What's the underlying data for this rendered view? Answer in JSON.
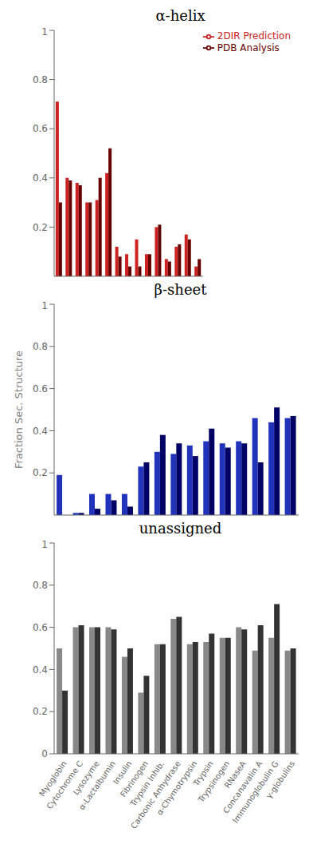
{
  "chart_data": [
    {
      "type": "bar",
      "title": "α-helix",
      "categories": [
        "Myoglobin",
        "Cytochrome C",
        "Lysozyme",
        "α-Lactalbumin",
        "Insulin",
        "Fibrinogen",
        "Trypsin Inhib.",
        "Carbonic Anhydrase",
        "α-Chymotrypsin",
        "Trypsin",
        "Trypsinogen",
        "RNaseA",
        "Concanavalin A",
        "Immunoglobulin G",
        "γ-globulins"
      ],
      "series": [
        {
          "name": "2DIR Prediction",
          "color": "#cc2222",
          "values": [
            0.71,
            0.4,
            0.38,
            0.3,
            0.31,
            0.42,
            0.12,
            0.09,
            0.15,
            0.09,
            0.2,
            0.07,
            0.12,
            0.17,
            0.04
          ]
        },
        {
          "name": "PDB Analysis",
          "color": "#660000",
          "values": [
            0.3,
            0.39,
            0.37,
            0.3,
            0.4,
            0.52,
            0.08,
            0.04,
            0.04,
            0.09,
            0.21,
            0.06,
            0.13,
            0.15,
            0.07
          ]
        }
      ],
      "ylim": [
        0,
        1
      ],
      "yticks": [
        0,
        0.2,
        0.4,
        0.6,
        0.8,
        1
      ],
      "legend": "upper right",
      "tick_labels": "y"
    },
    {
      "type": "bar",
      "title": "β-sheet",
      "ylabel": "Fraction Sec. Structure",
      "categories": [
        "Myoglobin",
        "Cytochrome C",
        "Lysozyme",
        "α-Lactalbumin",
        "Insulin",
        "Fibrinogen",
        "Trypsin Inhib.",
        "Carbonic Anhydrase",
        "α-Chymotrypsin",
        "Trypsin",
        "Trypsinogen",
        "RNaseA",
        "Concanavalin A",
        "Immunoglobulin G",
        "γ-globulins"
      ],
      "series": [
        {
          "color": "#2233bb",
          "values": [
            0.19,
            0.01,
            0.1,
            0.1,
            0.1,
            0.23,
            0.3,
            0.29,
            0.33,
            0.35,
            0.34,
            0.35,
            0.46,
            0.44,
            0.46
          ]
        },
        {
          "color": "#000066",
          "values": [
            0.0,
            0.01,
            0.03,
            0.07,
            0.04,
            0.25,
            0.38,
            0.34,
            0.28,
            0.41,
            0.32,
            0.34,
            0.25,
            0.51,
            0.47
          ]
        }
      ],
      "ylim": [
        0,
        1
      ],
      "yticks": [
        0,
        0.2,
        0.4,
        0.6,
        0.8,
        1
      ],
      "tick_labels": "y"
    },
    {
      "type": "bar",
      "title": "unassigned",
      "categories": [
        "Myoglobin",
        "Cytochrome C",
        "Lysozyme",
        "α-Lactalbumin",
        "Insulin",
        "Fibrinogen",
        "Trypsin Inhib.",
        "Carbonic Anhydrase",
        "α-Chymotrypsin",
        "Trypsin",
        "Trypsinogen",
        "RNaseA",
        "Concanavalin A",
        "Immunoglobulin G",
        "γ-globulins"
      ],
      "series": [
        {
          "color": "#888888",
          "values": [
            0.5,
            0.6,
            0.6,
            0.6,
            0.46,
            0.29,
            0.52,
            0.64,
            0.52,
            0.53,
            0.55,
            0.6,
            0.49,
            0.55,
            0.49
          ]
        },
        {
          "color": "#333333",
          "values": [
            0.3,
            0.61,
            0.6,
            0.59,
            0.5,
            0.37,
            0.52,
            0.65,
            0.53,
            0.57,
            0.55,
            0.59,
            0.61,
            0.71,
            0.5
          ]
        }
      ],
      "ylim": [
        0,
        1
      ],
      "yticks": [
        0,
        0.2,
        0.4,
        0.6,
        0.8,
        1
      ]
    }
  ]
}
